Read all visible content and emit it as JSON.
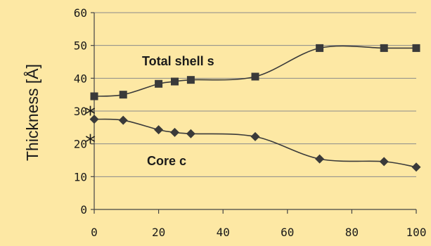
{
  "chart_data": {
    "type": "line",
    "title": "",
    "xlabel": "",
    "ylabel": "Thickness [Å]",
    "xlim": [
      0,
      100
    ],
    "ylim": [
      0,
      60
    ],
    "xticks": [
      0,
      20,
      40,
      60,
      80,
      100
    ],
    "yticks": [
      0,
      10,
      20,
      30,
      40,
      50,
      60
    ],
    "grid": true,
    "background": "#fde8a4",
    "series": [
      {
        "name": "Total shell s",
        "marker": "square",
        "color": "#3a3a3a",
        "x": [
          0,
          9,
          20,
          25,
          30,
          50,
          70,
          90,
          100
        ],
        "y": [
          34.5,
          35,
          38.3,
          39,
          39.5,
          40.5,
          49.2,
          49.2,
          49.2
        ]
      },
      {
        "name": "Core c",
        "marker": "diamond",
        "color": "#3a3a3a",
        "x": [
          0,
          9,
          20,
          25,
          30,
          50,
          70,
          90,
          100
        ],
        "y": [
          27.5,
          27.2,
          24.3,
          23.5,
          23.1,
          22.2,
          15.4,
          14.6,
          12.9
        ]
      }
    ],
    "annotations": [
      {
        "text": "*",
        "x": 0,
        "y": 30
      },
      {
        "text": "*",
        "x": 0,
        "y": 21
      }
    ]
  }
}
